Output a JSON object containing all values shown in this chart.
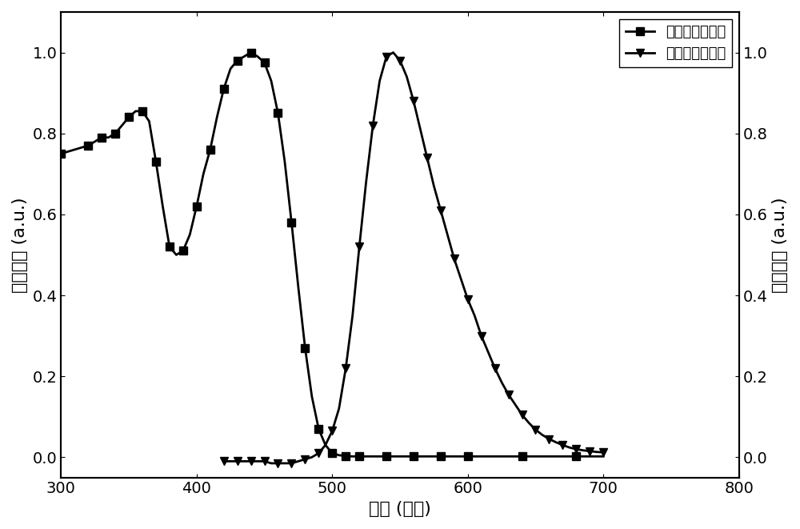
{
  "abs_x": [
    300,
    310,
    320,
    325,
    330,
    335,
    340,
    345,
    350,
    355,
    360,
    365,
    370,
    375,
    380,
    385,
    390,
    395,
    400,
    405,
    410,
    415,
    420,
    425,
    430,
    435,
    440,
    445,
    450,
    455,
    460,
    465,
    470,
    475,
    480,
    485,
    490,
    495,
    500,
    505,
    510,
    515,
    520,
    530,
    540,
    550,
    560,
    570,
    580,
    590,
    600,
    620,
    640,
    660,
    680,
    700
  ],
  "abs_y": [
    0.75,
    0.76,
    0.77,
    0.78,
    0.79,
    0.79,
    0.8,
    0.82,
    0.84,
    0.855,
    0.855,
    0.83,
    0.73,
    0.62,
    0.52,
    0.5,
    0.51,
    0.55,
    0.62,
    0.7,
    0.76,
    0.84,
    0.91,
    0.96,
    0.98,
    0.99,
    1.0,
    0.99,
    0.975,
    0.93,
    0.85,
    0.73,
    0.58,
    0.42,
    0.27,
    0.15,
    0.07,
    0.03,
    0.01,
    0.005,
    0.003,
    0.002,
    0.002,
    0.002,
    0.002,
    0.002,
    0.002,
    0.002,
    0.002,
    0.002,
    0.002,
    0.002,
    0.002,
    0.002,
    0.002,
    0.002
  ],
  "emi_x": [
    420,
    425,
    430,
    435,
    440,
    445,
    450,
    455,
    460,
    465,
    470,
    475,
    480,
    485,
    490,
    495,
    500,
    505,
    510,
    515,
    520,
    525,
    530,
    535,
    540,
    545,
    550,
    555,
    560,
    565,
    570,
    575,
    580,
    585,
    590,
    595,
    600,
    605,
    610,
    615,
    620,
    625,
    630,
    635,
    640,
    645,
    650,
    655,
    660,
    665,
    670,
    675,
    680,
    685,
    690,
    695,
    700
  ],
  "emi_y": [
    -0.01,
    -0.01,
    -0.01,
    -0.01,
    -0.01,
    -0.01,
    -0.01,
    -0.015,
    -0.015,
    -0.015,
    -0.015,
    -0.01,
    -0.005,
    0.0,
    0.01,
    0.03,
    0.065,
    0.12,
    0.22,
    0.35,
    0.52,
    0.68,
    0.82,
    0.93,
    0.99,
    1.0,
    0.98,
    0.94,
    0.88,
    0.81,
    0.74,
    0.67,
    0.61,
    0.55,
    0.49,
    0.44,
    0.39,
    0.35,
    0.3,
    0.26,
    0.22,
    0.185,
    0.155,
    0.13,
    0.105,
    0.085,
    0.068,
    0.055,
    0.045,
    0.037,
    0.03,
    0.024,
    0.02,
    0.017,
    0.015,
    0.013,
    0.012
  ],
  "xlabel": "波长 (纳米)",
  "ylabel_left": "吸收强度 (a.u.)",
  "ylabel_right": "发射强度 (a.u.)",
  "legend_abs": "溶液态吸收光谱",
  "legend_emi": "溶液态发射光谱",
  "xlim": [
    300,
    800
  ],
  "ylim_left": [
    -0.05,
    1.1
  ],
  "ylim_right": [
    -0.05,
    1.1
  ],
  "xticks": [
    300,
    400,
    500,
    600,
    700,
    800
  ],
  "yticks": [
    0.0,
    0.2,
    0.4,
    0.6,
    0.8,
    1.0
  ],
  "line_color": "#000000",
  "bg_color": "#ffffff",
  "marker_size": 7,
  "linewidth": 2.0
}
